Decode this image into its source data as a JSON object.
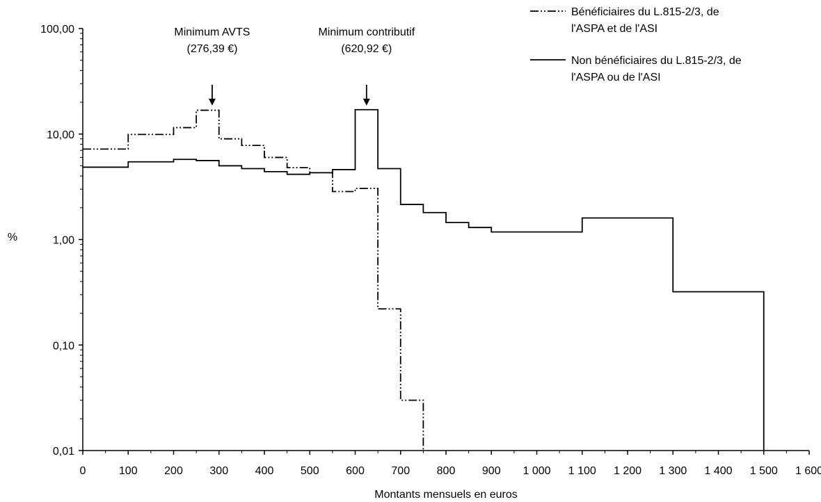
{
  "chart_data": {
    "type": "line",
    "subtype": "step",
    "title": "",
    "xlabel": "Montants mensuels en euros",
    "ylabel": "%",
    "xlim": [
      0,
      1600
    ],
    "ylim": [
      0.01,
      100
    ],
    "y_scale": "log",
    "grid": false,
    "legend_position": "top-right",
    "x_ticks": [
      0,
      100,
      200,
      300,
      400,
      500,
      600,
      700,
      800,
      900,
      1000,
      1100,
      1200,
      1300,
      1400,
      1500,
      1600
    ],
    "x_tick_labels": [
      "0",
      "100",
      "200",
      "300",
      "400",
      "500",
      "600",
      "700",
      "800",
      "900",
      "1 000",
      "1 100",
      "1 200",
      "1 300",
      "1 400",
      "1 500",
      "1 600"
    ],
    "y_ticks": [
      0.01,
      0.1,
      1,
      10,
      100
    ],
    "y_tick_labels": [
      "0,01",
      "0,10",
      "1,00",
      "10,00",
      "100,00"
    ],
    "series": [
      {
        "name": "Bénéficiaires du L.815-2/3, de l'ASPA et de l'ASI",
        "legend_lines": [
          "Bénéficiaires du L.815-2/3, de",
          "l'ASPA et de l'ASI"
        ],
        "line_style": "dash-dot-dot",
        "bins": [
          {
            "from": 0,
            "to": 100,
            "value": 7.2
          },
          {
            "from": 100,
            "to": 200,
            "value": 9.9
          },
          {
            "from": 200,
            "to": 250,
            "value": 11.5
          },
          {
            "from": 250,
            "to": 300,
            "value": 16.8
          },
          {
            "from": 300,
            "to": 350,
            "value": 9.0
          },
          {
            "from": 350,
            "to": 400,
            "value": 7.8
          },
          {
            "from": 400,
            "to": 450,
            "value": 6.0
          },
          {
            "from": 450,
            "to": 500,
            "value": 4.8
          },
          {
            "from": 500,
            "to": 550,
            "value": 4.3
          },
          {
            "from": 550,
            "to": 600,
            "value": 2.85
          },
          {
            "from": 600,
            "to": 650,
            "value": 3.05
          },
          {
            "from": 650,
            "to": 700,
            "value": 0.22
          },
          {
            "from": 700,
            "to": 750,
            "value": 0.03
          }
        ]
      },
      {
        "name": "Non bénéficiaires du L.815-2/3, de l'ASPA ou de l'ASI",
        "legend_lines": [
          "Non bénéficiaires du L.815-2/3, de",
          "l'ASPA ou de l'ASI"
        ],
        "line_style": "solid",
        "bins": [
          {
            "from": 0,
            "to": 100,
            "value": 4.85
          },
          {
            "from": 100,
            "to": 200,
            "value": 5.45
          },
          {
            "from": 200,
            "to": 250,
            "value": 5.75
          },
          {
            "from": 250,
            "to": 300,
            "value": 5.6
          },
          {
            "from": 300,
            "to": 350,
            "value": 5.0
          },
          {
            "from": 350,
            "to": 400,
            "value": 4.7
          },
          {
            "from": 400,
            "to": 450,
            "value": 4.4
          },
          {
            "from": 450,
            "to": 500,
            "value": 4.15
          },
          {
            "from": 500,
            "to": 550,
            "value": 4.3
          },
          {
            "from": 550,
            "to": 600,
            "value": 4.6
          },
          {
            "from": 600,
            "to": 650,
            "value": 17.0
          },
          {
            "from": 650,
            "to": 700,
            "value": 4.7
          },
          {
            "from": 700,
            "to": 750,
            "value": 2.15
          },
          {
            "from": 750,
            "to": 800,
            "value": 1.8
          },
          {
            "from": 800,
            "to": 850,
            "value": 1.45
          },
          {
            "from": 850,
            "to": 900,
            "value": 1.3
          },
          {
            "from": 900,
            "to": 1100,
            "value": 1.18
          },
          {
            "from": 1100,
            "to": 1300,
            "value": 1.6
          },
          {
            "from": 1300,
            "to": 1500,
            "value": 0.32
          }
        ]
      }
    ],
    "annotations": [
      {
        "lines": [
          "Minimum AVTS",
          "(276,39 €)"
        ],
        "x": 285,
        "arrow_top_value": 21,
        "arrow_tip_value": 17.5
      },
      {
        "lines": [
          "Minimum contributif",
          "(620,92 €)"
        ],
        "x": 625,
        "arrow_top_value": 21,
        "arrow_tip_value": 17.5
      }
    ]
  }
}
